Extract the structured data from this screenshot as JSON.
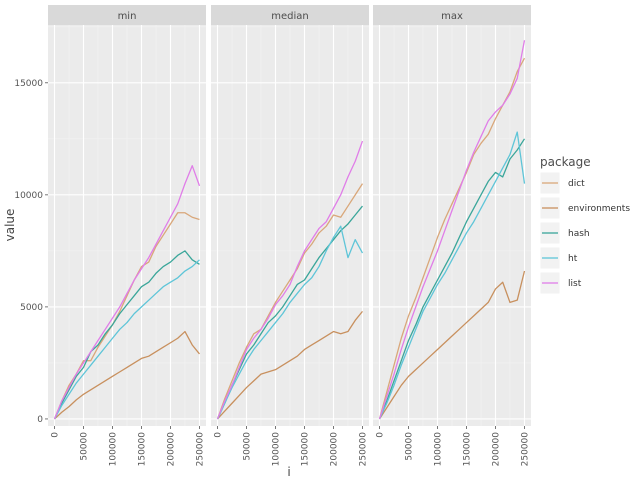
{
  "chart_data": {
    "type": "line",
    "facets": [
      "min",
      "median",
      "max"
    ],
    "xlabel": "i",
    "ylabel": "value",
    "xlim": [
      0,
      250000
    ],
    "ylim": [
      0,
      17500
    ],
    "x_ticks": [
      0,
      50000,
      100000,
      150000,
      200000,
      250000
    ],
    "x_tick_labels": [
      "0",
      "50000",
      "100000",
      "150000",
      "200000",
      "250000"
    ],
    "y_ticks": [
      0,
      5000,
      10000,
      15000
    ],
    "y_tick_labels": [
      "0",
      "5000",
      "10000",
      "15000"
    ],
    "grid": true,
    "legend": {
      "title": "package",
      "position": "right",
      "entries": [
        {
          "name": "dict",
          "color": "#d9a77a"
        },
        {
          "name": "environments",
          "color": "#c8905e"
        },
        {
          "name": "hash",
          "color": "#3aa69a"
        },
        {
          "name": "ht",
          "color": "#5ec5d8"
        },
        {
          "name": "list",
          "color": "#e07de8"
        }
      ]
    },
    "x": [
      0,
      12500,
      25000,
      37500,
      50000,
      62500,
      75000,
      87500,
      100000,
      112500,
      125000,
      137500,
      150000,
      162500,
      175000,
      187500,
      200000,
      212500,
      225000,
      237500,
      250000
    ],
    "panels": [
      {
        "name": "min",
        "series": [
          {
            "name": "dict",
            "values": [
              0,
              800,
              1500,
              2000,
              2600,
              2600,
              3200,
              3700,
              4200,
              4800,
              5500,
              6200,
              6800,
              7000,
              7700,
              8200,
              8700,
              9200,
              9200,
              9000,
              8900
            ]
          },
          {
            "name": "environments",
            "values": [
              0,
              300,
              550,
              850,
              1100,
              1300,
              1500,
              1700,
              1900,
              2100,
              2300,
              2500,
              2700,
              2800,
              3000,
              3200,
              3400,
              3600,
              3900,
              3300,
              2900
            ]
          },
          {
            "name": "hash",
            "values": [
              0,
              700,
              1300,
              1900,
              2300,
              3000,
              3300,
              3800,
              4200,
              4700,
              5100,
              5500,
              5900,
              6100,
              6500,
              6800,
              7000,
              7300,
              7500,
              7100,
              6900
            ]
          },
          {
            "name": "ht",
            "values": [
              0,
              600,
              1100,
              1600,
              2000,
              2400,
              2800,
              3200,
              3600,
              4000,
              4300,
              4700,
              5000,
              5300,
              5600,
              5900,
              6100,
              6300,
              6600,
              6800,
              7100
            ]
          },
          {
            "name": "list",
            "values": [
              0,
              800,
              1400,
              2000,
              2500,
              3000,
              3500,
              4000,
              4500,
              5000,
              5600,
              6200,
              6700,
              7200,
              7800,
              8400,
              9000,
              9600,
              10500,
              11300,
              10400
            ]
          }
        ]
      },
      {
        "name": "median",
        "series": [
          {
            "name": "dict",
            "values": [
              0,
              900,
              1700,
              2500,
              3200,
              3800,
              4000,
              4600,
              5200,
              5700,
              6200,
              6700,
              7400,
              7800,
              8300,
              8600,
              9100,
              9000,
              9500,
              10000,
              10500
            ]
          },
          {
            "name": "environments",
            "values": [
              0,
              350,
              700,
              1050,
              1400,
              1700,
              2000,
              2100,
              2200,
              2400,
              2600,
              2800,
              3100,
              3300,
              3500,
              3700,
              3900,
              3800,
              3900,
              4400,
              4800
            ]
          },
          {
            "name": "hash",
            "values": [
              0,
              700,
              1500,
              2200,
              2900,
              3300,
              3800,
              4300,
              4600,
              5000,
              5500,
              6000,
              6200,
              6700,
              7200,
              7600,
              8000,
              8400,
              8700,
              9100,
              9500
            ]
          },
          {
            "name": "ht",
            "values": [
              0,
              700,
              1400,
              2000,
              2600,
              3100,
              3500,
              3900,
              4300,
              4700,
              5200,
              5600,
              6000,
              6300,
              6800,
              7500,
              8100,
              8600,
              7200,
              8000,
              7400
            ]
          },
          {
            "name": "list",
            "values": [
              0,
              800,
              1500,
              2300,
              3100,
              3600,
              4000,
              4500,
              5100,
              5500,
              6000,
              6800,
              7500,
              8000,
              8500,
              8800,
              9400,
              10000,
              10800,
              11500,
              12400
            ]
          }
        ]
      },
      {
        "name": "max",
        "series": [
          {
            "name": "dict",
            "values": [
              0,
              1200,
              2400,
              3600,
              4600,
              5400,
              6300,
              7200,
              8100,
              8900,
              9600,
              10300,
              11000,
              11800,
              12300,
              12700,
              13400,
              14000,
              14600,
              15500,
              16100
            ]
          },
          {
            "name": "environments",
            "values": [
              0,
              500,
              1000,
              1500,
              1900,
              2200,
              2500,
              2800,
              3100,
              3400,
              3700,
              4000,
              4300,
              4600,
              4900,
              5200,
              5800,
              6100,
              5200,
              5300,
              6600
            ]
          },
          {
            "name": "hash",
            "values": [
              0,
              800,
              1700,
              2600,
              3500,
              4200,
              5000,
              5600,
              6200,
              6800,
              7400,
              8100,
              8800,
              9400,
              10000,
              10600,
              11000,
              10800,
              11600,
              12000,
              12500
            ]
          },
          {
            "name": "ht",
            "values": [
              0,
              700,
              1500,
              2400,
              3200,
              4000,
              4800,
              5400,
              6000,
              6500,
              7100,
              7700,
              8300,
              8800,
              9400,
              10000,
              10600,
              11200,
              11800,
              12800,
              10500
            ]
          },
          {
            "name": "list",
            "values": [
              0,
              1000,
              2000,
              3100,
              4100,
              5000,
              5900,
              6700,
              7500,
              8400,
              9300,
              10200,
              11100,
              11900,
              12600,
              13300,
              13700,
              14000,
              14500,
              15200,
              16900
            ]
          }
        ]
      }
    ]
  }
}
